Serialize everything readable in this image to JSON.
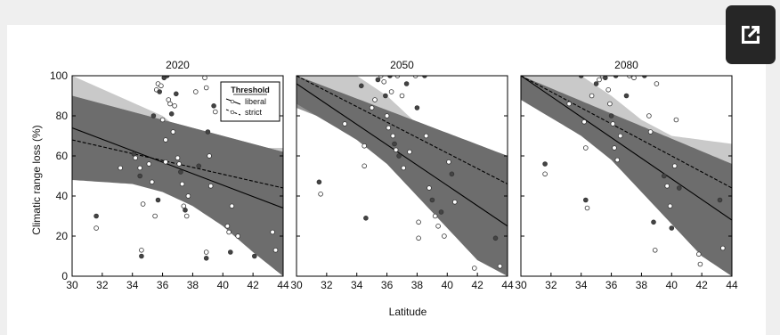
{
  "ui": {
    "expand_icon": "open-in-new-icon",
    "button_bg": "#262626",
    "card_bg": "#ffffff",
    "page_bg": "#efefef"
  },
  "chart_data": {
    "type": "scatter",
    "xlabel": "Latitude",
    "ylabel": "Climatic range loss (%)",
    "xlim": [
      30,
      44
    ],
    "ylim": [
      0,
      100
    ],
    "xticks": [
      "30",
      "32",
      "34",
      "36",
      "38",
      "40",
      "42",
      "44"
    ],
    "yticks": [
      "0",
      "20",
      "40",
      "60",
      "80",
      "100"
    ],
    "legend": {
      "title": "Threshold",
      "entries": [
        "liberal",
        "strict"
      ],
      "placement": "top-right of first panel"
    },
    "colors": {
      "band_dark": "#6d6d6d",
      "band_mid": "#939393",
      "band_light": "#c9c9c9"
    },
    "panels": [
      {
        "title": "2020",
        "liberal": {
          "fit": [
            [
              30,
              74
            ],
            [
              44,
              34
            ]
          ],
          "ci_upper": [
            [
              30,
              100
            ],
            [
              36,
              80
            ],
            [
              38,
              68
            ],
            [
              40,
              64
            ],
            [
              44,
              64
            ]
          ],
          "ci_lower": [
            [
              30,
              50
            ],
            [
              36,
              47
            ],
            [
              38,
              42
            ],
            [
              40,
              34
            ],
            [
              42,
              20
            ],
            [
              44,
              10
            ]
          ]
        },
        "strict": {
          "fit": [
            [
              30,
              68
            ],
            [
              44,
              44
            ]
          ],
          "ci_upper": [
            [
              30,
              90
            ],
            [
              44,
              62
            ]
          ],
          "ci_lower": [
            [
              30,
              48
            ],
            [
              34,
              46
            ],
            [
              36,
              42
            ],
            [
              38,
              35
            ],
            [
              40,
              25
            ],
            [
              42,
              12
            ],
            [
              44,
              0
            ]
          ]
        },
        "points": [
          [
            31.6,
            30
          ],
          [
            31.6,
            24
          ],
          [
            33.2,
            54
          ],
          [
            34.1,
            61
          ],
          [
            34.2,
            59
          ],
          [
            34.5,
            54
          ],
          [
            34.5,
            50
          ],
          [
            34.7,
            36
          ],
          [
            34.6,
            13
          ],
          [
            34.6,
            10
          ],
          [
            35.1,
            56
          ],
          [
            35.3,
            47
          ],
          [
            35.4,
            80
          ],
          [
            35.6,
            93
          ],
          [
            35.7,
            96
          ],
          [
            35.8,
            92
          ],
          [
            35.9,
            95
          ],
          [
            36.0,
            78
          ],
          [
            36.1,
            99
          ],
          [
            36.2,
            68
          ],
          [
            36.2,
            57
          ],
          [
            36.3,
            100
          ],
          [
            36.4,
            88
          ],
          [
            36.5,
            86
          ],
          [
            36.6,
            81
          ],
          [
            36.7,
            72
          ],
          [
            36.8,
            85
          ],
          [
            36.9,
            91
          ],
          [
            37.0,
            59
          ],
          [
            37.1,
            56
          ],
          [
            37.2,
            52
          ],
          [
            37.3,
            46
          ],
          [
            37.4,
            35
          ],
          [
            37.5,
            33
          ],
          [
            37.6,
            30
          ],
          [
            37.7,
            40
          ],
          [
            35.7,
            38
          ],
          [
            35.5,
            30
          ],
          [
            38.2,
            92
          ],
          [
            38.4,
            55
          ],
          [
            38.8,
            99
          ],
          [
            38.9,
            94
          ],
          [
            39.0,
            72
          ],
          [
            39.1,
            60
          ],
          [
            39.2,
            45
          ],
          [
            39.4,
            85
          ],
          [
            39.5,
            82
          ],
          [
            38.9,
            12
          ],
          [
            38.9,
            9
          ],
          [
            40.3,
            25
          ],
          [
            40.4,
            22
          ],
          [
            40.5,
            12
          ],
          [
            40.6,
            35
          ],
          [
            41.0,
            20
          ],
          [
            42.1,
            10
          ],
          [
            43.3,
            22
          ],
          [
            43.5,
            13
          ]
        ]
      },
      {
        "title": "2050",
        "liberal": {
          "fit": [
            [
              30,
              96
            ],
            [
              44,
              25
            ]
          ],
          "ci_upper": [
            [
              30,
              100
            ],
            [
              34,
              100
            ],
            [
              36,
              90
            ],
            [
              38,
              76
            ],
            [
              40,
              66
            ],
            [
              44,
              60
            ]
          ],
          "ci_lower": [
            [
              30,
              84
            ],
            [
              34,
              72
            ],
            [
              36,
              58
            ],
            [
              38,
              42
            ],
            [
              40,
              26
            ],
            [
              42,
              10
            ],
            [
              44,
              0
            ]
          ]
        },
        "strict": {
          "fit": [
            [
              30,
              100
            ],
            [
              44,
              46
            ]
          ],
          "ci_upper": [
            [
              30,
              100
            ],
            [
              44,
              60
            ]
          ],
          "ci_lower": [
            [
              30,
              86
            ],
            [
              34,
              68
            ],
            [
              36,
              56
            ],
            [
              38,
              40
            ],
            [
              40,
              24
            ],
            [
              42,
              8
            ],
            [
              44,
              0
            ]
          ]
        },
        "points": [
          [
            31.5,
            47
          ],
          [
            31.6,
            41
          ],
          [
            33.2,
            76
          ],
          [
            34.3,
            95
          ],
          [
            34.5,
            65
          ],
          [
            34.5,
            55
          ],
          [
            34.6,
            29
          ],
          [
            35.0,
            84
          ],
          [
            35.2,
            88
          ],
          [
            35.4,
            98
          ],
          [
            35.6,
            100
          ],
          [
            35.8,
            97
          ],
          [
            35.9,
            90
          ],
          [
            36.0,
            80
          ],
          [
            36.1,
            74
          ],
          [
            36.2,
            100
          ],
          [
            36.3,
            92
          ],
          [
            36.4,
            70
          ],
          [
            36.5,
            66
          ],
          [
            36.6,
            63
          ],
          [
            36.7,
            100
          ],
          [
            36.8,
            60
          ],
          [
            37.0,
            90
          ],
          [
            37.1,
            54
          ],
          [
            37.3,
            96
          ],
          [
            37.5,
            62
          ],
          [
            37.9,
            100
          ],
          [
            38.0,
            84
          ],
          [
            38.1,
            27
          ],
          [
            38.1,
            19
          ],
          [
            38.5,
            100
          ],
          [
            38.6,
            70
          ],
          [
            38.8,
            44
          ],
          [
            39.0,
            38
          ],
          [
            39.2,
            30
          ],
          [
            39.4,
            25
          ],
          [
            39.6,
            32
          ],
          [
            39.8,
            20
          ],
          [
            40.1,
            57
          ],
          [
            40.3,
            51
          ],
          [
            40.5,
            37
          ],
          [
            41.8,
            4
          ],
          [
            43.2,
            19
          ],
          [
            43.5,
            5
          ]
        ]
      },
      {
        "title": "2080",
        "liberal": {
          "fit": [
            [
              30,
              100
            ],
            [
              44,
              28
            ]
          ],
          "ci_upper": [
            [
              30,
              100
            ],
            [
              34,
              100
            ],
            [
              36,
              90
            ],
            [
              38,
              78
            ],
            [
              40,
              70
            ],
            [
              44,
              66
            ]
          ],
          "ci_lower": [
            [
              30,
              90
            ],
            [
              34,
              74
            ],
            [
              36,
              60
            ],
            [
              38,
              44
            ],
            [
              40,
              28
            ],
            [
              42,
              12
            ],
            [
              44,
              0
            ]
          ]
        },
        "strict": {
          "fit": [
            [
              30,
              100
            ],
            [
              44,
              44
            ]
          ],
          "ci_upper": [
            [
              30,
              100
            ],
            [
              44,
              56
            ]
          ],
          "ci_lower": [
            [
              30,
              88
            ],
            [
              34,
              70
            ],
            [
              36,
              58
            ],
            [
              38,
              42
            ],
            [
              40,
              26
            ],
            [
              42,
              10
            ],
            [
              44,
              0
            ]
          ]
        },
        "points": [
          [
            31.6,
            56
          ],
          [
            31.6,
            51
          ],
          [
            33.2,
            86
          ],
          [
            34.0,
            100
          ],
          [
            34.2,
            77
          ],
          [
            34.3,
            64
          ],
          [
            34.3,
            38
          ],
          [
            34.4,
            34
          ],
          [
            34.7,
            90
          ],
          [
            35.0,
            96
          ],
          [
            35.2,
            98
          ],
          [
            35.4,
            100
          ],
          [
            35.6,
            99
          ],
          [
            35.8,
            93
          ],
          [
            35.9,
            86
          ],
          [
            36.0,
            80
          ],
          [
            36.1,
            76
          ],
          [
            36.2,
            64
          ],
          [
            36.3,
            100
          ],
          [
            36.4,
            58
          ],
          [
            36.6,
            70
          ],
          [
            37.0,
            90
          ],
          [
            37.2,
            100
          ],
          [
            37.5,
            99
          ],
          [
            38.2,
            100
          ],
          [
            38.5,
            80
          ],
          [
            38.6,
            72
          ],
          [
            38.8,
            27
          ],
          [
            38.9,
            13
          ],
          [
            39.0,
            96
          ],
          [
            39.5,
            50
          ],
          [
            39.7,
            45
          ],
          [
            39.9,
            35
          ],
          [
            40.0,
            24
          ],
          [
            40.2,
            55
          ],
          [
            40.3,
            78
          ],
          [
            40.5,
            44
          ],
          [
            41.8,
            11
          ],
          [
            41.9,
            6
          ],
          [
            43.2,
            38
          ],
          [
            43.4,
            14
          ]
        ]
      }
    ]
  }
}
